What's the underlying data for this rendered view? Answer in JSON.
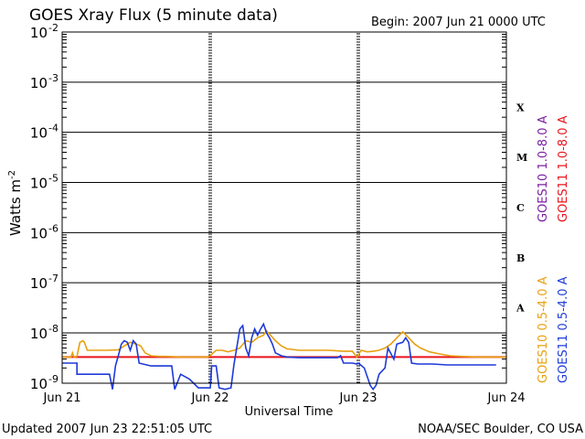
{
  "chart_data": {
    "type": "line",
    "title": "GOES Xray Flux (5 minute data)",
    "begin_label": "Begin:  2007 Jun 21 0000 UTC",
    "xlabel": "Universal Time",
    "ylabel": "Watts m",
    "ylabel_sup": "-2",
    "log_y": true,
    "y_ticks": [
      {
        "base": "10",
        "exp": "-2",
        "value": 0.01
      },
      {
        "base": "10",
        "exp": "-3",
        "value": 0.001
      },
      {
        "base": "10",
        "exp": "-4",
        "value": 0.0001
      },
      {
        "base": "10",
        "exp": "-5",
        "value": 1e-05
      },
      {
        "base": "10",
        "exp": "-6",
        "value": 1e-06
      },
      {
        "base": "10",
        "exp": "-7",
        "value": 1e-07
      },
      {
        "base": "10",
        "exp": "-8",
        "value": 1e-08
      },
      {
        "base": "10",
        "exp": "-9",
        "value": 1e-09
      }
    ],
    "ylim": [
      7e-10,
      0.01
    ],
    "x_ticks": [
      {
        "label": "Jun 21",
        "day": 0
      },
      {
        "label": "Jun 22",
        "day": 1
      },
      {
        "label": "Jun 23",
        "day": 2
      },
      {
        "label": "Jun 24",
        "day": 3
      }
    ],
    "xlim_days": [
      0,
      3
    ],
    "flare_classes": [
      {
        "label": "X",
        "level": 0.0001
      },
      {
        "label": "M",
        "level": 1e-05
      },
      {
        "label": "C",
        "level": 1e-06
      },
      {
        "label": "B",
        "level": 1e-07
      },
      {
        "label": "A",
        "level": 1e-08
      }
    ],
    "legend_right_top": [
      {
        "label": "GOES10 1.0-8.0 A",
        "color": "#7a1fa2"
      },
      {
        "label": "GOES11 1.0-8.0 A",
        "color": "#e8141b"
      }
    ],
    "legend_right_bottom": [
      {
        "label": "GOES10 0.5-4.0 A",
        "color": "#e8a010"
      },
      {
        "label": "GOES11 0.5-4.0 A",
        "color": "#1e3ad8"
      }
    ],
    "series": [
      {
        "name": "GOES11 1.0-8.0 A",
        "color": "#e8141b",
        "points": [
          [
            0,
            3.3e-09
          ],
          [
            3,
            3.3e-09
          ]
        ]
      },
      {
        "name": "GOES10 0.5-4.0 A",
        "color": "#e8a010",
        "points": [
          [
            0.0,
            3.3e-09
          ],
          [
            0.06,
            3.3e-09
          ],
          [
            0.07,
            4e-09
          ],
          [
            0.08,
            3.3e-09
          ],
          [
            0.1,
            3.4e-09
          ],
          [
            0.12,
            6.5e-09
          ],
          [
            0.14,
            7e-09
          ],
          [
            0.15,
            6.5e-09
          ],
          [
            0.17,
            4.5e-09
          ],
          [
            0.22,
            4.5e-09
          ],
          [
            0.3,
            4.5e-09
          ],
          [
            0.38,
            4.6e-09
          ],
          [
            0.42,
            5.5e-09
          ],
          [
            0.46,
            6.5e-09
          ],
          [
            0.5,
            6e-09
          ],
          [
            0.53,
            5.5e-09
          ],
          [
            0.56,
            4e-09
          ],
          [
            0.6,
            3.5e-09
          ],
          [
            0.66,
            3.4e-09
          ],
          [
            0.7,
            3.4e-09
          ],
          [
            0.8,
            3.3e-09
          ],
          [
            0.9,
            3.3e-09
          ],
          [
            0.98,
            3.3e-09
          ],
          [
            1.0,
            3.5e-09
          ],
          [
            1.02,
            4e-09
          ],
          [
            1.04,
            4.5e-09
          ],
          [
            1.08,
            4.5e-09
          ],
          [
            1.12,
            4.2e-09
          ],
          [
            1.16,
            4.5e-09
          ],
          [
            1.2,
            5e-09
          ],
          [
            1.24,
            7e-09
          ],
          [
            1.28,
            6.5e-09
          ],
          [
            1.32,
            8e-09
          ],
          [
            1.36,
            9e-09
          ],
          [
            1.38,
            1.1e-08
          ],
          [
            1.4,
            9.5e-09
          ],
          [
            1.44,
            7e-09
          ],
          [
            1.48,
            5.5e-09
          ],
          [
            1.52,
            4.8e-09
          ],
          [
            1.6,
            4.5e-09
          ],
          [
            1.7,
            4.5e-09
          ],
          [
            1.8,
            4.5e-09
          ],
          [
            1.9,
            4.3e-09
          ],
          [
            1.96,
            4.3e-09
          ],
          [
            1.99,
            3.3e-09
          ],
          [
            2.02,
            4.5e-09
          ],
          [
            2.06,
            4.2e-09
          ],
          [
            2.1,
            4.3e-09
          ],
          [
            2.14,
            4.5e-09
          ],
          [
            2.18,
            5e-09
          ],
          [
            2.22,
            6e-09
          ],
          [
            2.26,
            8e-09
          ],
          [
            2.3,
            1.05e-08
          ],
          [
            2.34,
            8e-09
          ],
          [
            2.38,
            6e-09
          ],
          [
            2.42,
            5e-09
          ],
          [
            2.48,
            4.2e-09
          ],
          [
            2.55,
            3.8e-09
          ],
          [
            2.62,
            3.5e-09
          ],
          [
            2.7,
            3.4e-09
          ],
          [
            2.8,
            3.3e-09
          ],
          [
            2.9,
            3.3e-09
          ],
          [
            3.0,
            3.3e-09
          ]
        ]
      },
      {
        "name": "GOES11 0.5-4.0 A",
        "color": "#1e3ad8",
        "points": [
          [
            0.0,
            2.5e-09
          ],
          [
            0.06,
            2.5e-09
          ],
          [
            0.1,
            2.5e-09
          ],
          [
            0.1,
            1.5e-09
          ],
          [
            0.3,
            1.5e-09
          ],
          [
            0.32,
            1.5e-09
          ],
          [
            0.34,
            7.5e-10
          ],
          [
            0.36,
            2.2e-09
          ],
          [
            0.38,
            3.6e-09
          ],
          [
            0.4,
            6e-09
          ],
          [
            0.42,
            7e-09
          ],
          [
            0.44,
            6.5e-09
          ],
          [
            0.46,
            4.5e-09
          ],
          [
            0.48,
            7e-09
          ],
          [
            0.5,
            6e-09
          ],
          [
            0.52,
            2.5e-09
          ],
          [
            0.6,
            2.2e-09
          ],
          [
            0.7,
            2.2e-09
          ],
          [
            0.74,
            2.2e-09
          ],
          [
            0.76,
            7.5e-10
          ],
          [
            0.8,
            1.5e-09
          ],
          [
            0.86,
            1.2e-09
          ],
          [
            0.92,
            8e-10
          ],
          [
            1.0,
            8e-10
          ],
          [
            1.01,
            2.2e-09
          ],
          [
            1.04,
            2.2e-09
          ],
          [
            1.06,
            8e-10
          ],
          [
            1.1,
            7.5e-10
          ],
          [
            1.14,
            8e-10
          ],
          [
            1.16,
            2.3e-09
          ],
          [
            1.2,
            1.2e-08
          ],
          [
            1.22,
            1.4e-08
          ],
          [
            1.24,
            5e-09
          ],
          [
            1.26,
            3.5e-09
          ],
          [
            1.28,
            8e-09
          ],
          [
            1.3,
            1.2e-08
          ],
          [
            1.32,
            9e-09
          ],
          [
            1.34,
            1.2e-08
          ],
          [
            1.36,
            1.5e-08
          ],
          [
            1.38,
            1e-08
          ],
          [
            1.4,
            8e-09
          ],
          [
            1.42,
            6e-09
          ],
          [
            1.44,
            4e-09
          ],
          [
            1.48,
            3.5e-09
          ],
          [
            1.52,
            3.3e-09
          ],
          [
            1.6,
            3.2e-09
          ],
          [
            1.7,
            3.2e-09
          ],
          [
            1.8,
            3.2e-09
          ],
          [
            1.86,
            3.2e-09
          ],
          [
            1.88,
            3.5e-09
          ],
          [
            1.9,
            2.5e-09
          ],
          [
            1.96,
            2.5e-09
          ],
          [
            1.99,
            2.4e-09
          ],
          [
            2.0,
            2.5e-09
          ],
          [
            2.04,
            2e-09
          ],
          [
            2.08,
            9e-10
          ],
          [
            2.1,
            7.5e-10
          ],
          [
            2.12,
            9e-10
          ],
          [
            2.14,
            1.5e-09
          ],
          [
            2.18,
            2e-09
          ],
          [
            2.2,
            5e-09
          ],
          [
            2.24,
            3e-09
          ],
          [
            2.26,
            6e-09
          ],
          [
            2.3,
            6.5e-09
          ],
          [
            2.32,
            8e-09
          ],
          [
            2.34,
            6.5e-09
          ],
          [
            2.36,
            2.5e-09
          ],
          [
            2.4,
            2.4e-09
          ],
          [
            2.5,
            2.4e-09
          ],
          [
            2.6,
            2.3e-09
          ],
          [
            2.7,
            2.3e-09
          ],
          [
            2.8,
            2.3e-09
          ],
          [
            2.9,
            2.3e-09
          ],
          [
            2.93,
            2.3e-09
          ]
        ]
      }
    ]
  },
  "footer": {
    "updated": "Updated 2007 Jun 23 22:51:05 UTC",
    "credit": "NOAA/SEC Boulder, CO USA"
  }
}
